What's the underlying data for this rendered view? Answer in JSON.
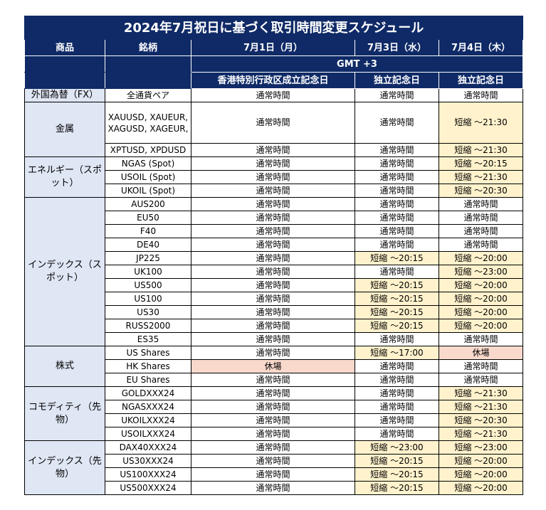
{
  "title": "2024年7月祝日に基づく取引時間変更スケジュール",
  "headers": {
    "product": "商品",
    "symbol": "銘柄",
    "d1": "7月1日（月）",
    "d2": "7月3日（水）",
    "d3": "7月4日（木）",
    "tz": "GMT +3",
    "h1": "香港特別行政区成立記念日",
    "h2": "独立記念日",
    "h3": "独立記念日"
  },
  "groups": [
    {
      "category": "外国為替（FX）",
      "rows": [
        {
          "symbol": "全通貨ペア",
          "d1": "通常時間",
          "d2": "通常時間",
          "d3": "通常時間"
        }
      ]
    },
    {
      "category": "金属",
      "rows": [
        {
          "symbol": "XAUUSD, XAUEUR, XAGUSD, XAGEUR,",
          "d1": "通常時間",
          "d2": "通常時間",
          "d3": "短縮 ～21:30"
        },
        {
          "symbol": "XPTUSD, XPDUSD",
          "d1": "通常時間",
          "d2": "通常時間",
          "d3": "短縮 ～21:30"
        }
      ]
    },
    {
      "category": "エネルギー（スポット）",
      "rows": [
        {
          "symbol": "NGAS (Spot)",
          "d1": "通常時間",
          "d2": "通常時間",
          "d3": "短縮 ～20:15"
        },
        {
          "symbol": "USOIL (Spot)",
          "d1": "通常時間",
          "d2": "通常時間",
          "d3": "短縮 ～21:30"
        },
        {
          "symbol": "UKOIL (Spot)",
          "d1": "通常時間",
          "d2": "通常時間",
          "d3": "短縮 ～20:30"
        }
      ]
    },
    {
      "category": "インデックス（スポット）",
      "rows": [
        {
          "symbol": "AUS200",
          "d1": "通常時間",
          "d2": "通常時間",
          "d3": "通常時間"
        },
        {
          "symbol": "EU50",
          "d1": "通常時間",
          "d2": "通常時間",
          "d3": "通常時間"
        },
        {
          "symbol": "F40",
          "d1": "通常時間",
          "d2": "通常時間",
          "d3": "通常時間"
        },
        {
          "symbol": "DE40",
          "d1": "通常時間",
          "d2": "通常時間",
          "d3": "通常時間"
        },
        {
          "symbol": "JP225",
          "d1": "通常時間",
          "d2": "短縮 ～20:15",
          "d3": "短縮 ～20:00"
        },
        {
          "symbol": "UK100",
          "d1": "通常時間",
          "d2": "通常時間",
          "d3": "短縮 ～23:00"
        },
        {
          "symbol": "US500",
          "d1": "通常時間",
          "d2": "短縮 ～20:15",
          "d3": "短縮 ～20:00"
        },
        {
          "symbol": "US100",
          "d1": "通常時間",
          "d2": "短縮 ～20:15",
          "d3": "短縮 ～20:00"
        },
        {
          "symbol": "US30",
          "d1": "通常時間",
          "d2": "短縮 ～20:15",
          "d3": "短縮 ～20:00"
        },
        {
          "symbol": "RUSS2000",
          "d1": "通常時間",
          "d2": "短縮 ～20:15",
          "d3": "短縮 ～20:00"
        },
        {
          "symbol": "ES35",
          "d1": "通常時間",
          "d2": "通常時間",
          "d3": "通常時間"
        }
      ]
    },
    {
      "category": "株式",
      "rows": [
        {
          "symbol": "US Shares",
          "d1": "通常時間",
          "d2": "短縮 ～17:00",
          "d3": "休場"
        },
        {
          "symbol": "HK Shares",
          "d1": "休場",
          "d2": "通常時間",
          "d3": "通常時間"
        },
        {
          "symbol": "EU Shares",
          "d1": "通常時間",
          "d2": "通常時間",
          "d3": "通常時間"
        }
      ]
    },
    {
      "category": "コモディティ（先物）",
      "rows": [
        {
          "symbol": "GOLDXXX24",
          "d1": "通常時間",
          "d2": "通常時間",
          "d3": "短縮 ～21:30"
        },
        {
          "symbol": "NGASXXX24",
          "d1": "通常時間",
          "d2": "通常時間",
          "d3": "短縮 ～21:30"
        },
        {
          "symbol": "UKOILXXX24",
          "d1": "通常時間",
          "d2": "通常時間",
          "d3": "短縮 ～20:30"
        },
        {
          "symbol": "USOILXXX24",
          "d1": "通常時間",
          "d2": "通常時間",
          "d3": "短縮 ～21:30"
        }
      ]
    },
    {
      "category": "インデックス（先物）",
      "rows": [
        {
          "symbol": "DAX40XXX24",
          "d1": "通常時間",
          "d2": "短縮 ～23:00",
          "d3": "短縮 ～23:00"
        },
        {
          "symbol": "US30XXX24",
          "d1": "通常時間",
          "d2": "短縮 ～20:15",
          "d3": "短縮 ～20:00"
        },
        {
          "symbol": "US100XXX24",
          "d1": "通常時間",
          "d2": "短縮 ～20:15",
          "d3": "短縮 ～20:00"
        },
        {
          "symbol": "US500XXX24",
          "d1": "通常時間",
          "d2": "短縮 ～20:15",
          "d3": "短縮 ～20:00"
        }
      ]
    }
  ],
  "colors": {
    "header_bg": "#0f2a66",
    "category_bg": "#dfe6f4",
    "shortened_bg": "#fff2cc",
    "closed_bg": "#f9d9cc"
  }
}
